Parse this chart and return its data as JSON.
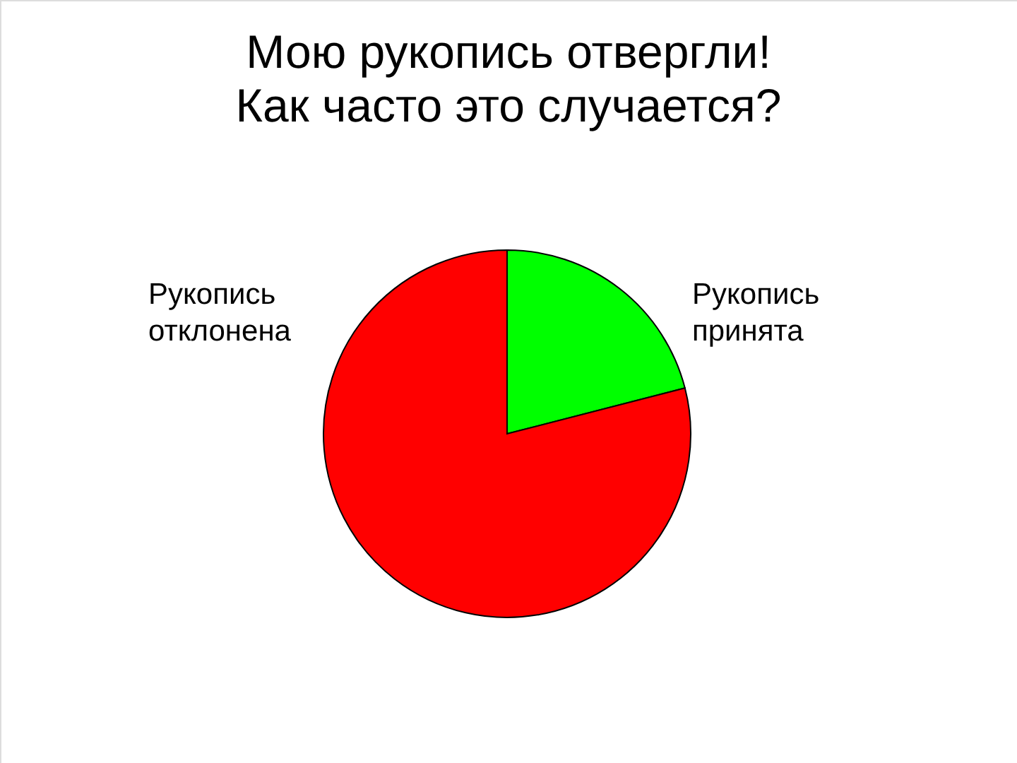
{
  "chart_data": {
    "type": "pie",
    "title": "Мою рукопись отвергли!\nКак часто это случается?",
    "categories": [
      "Рукопись\nпринята",
      "Рукопись\nотклонена"
    ],
    "values": [
      21,
      79
    ],
    "colors": [
      "#00ff00",
      "#ff0000"
    ]
  }
}
